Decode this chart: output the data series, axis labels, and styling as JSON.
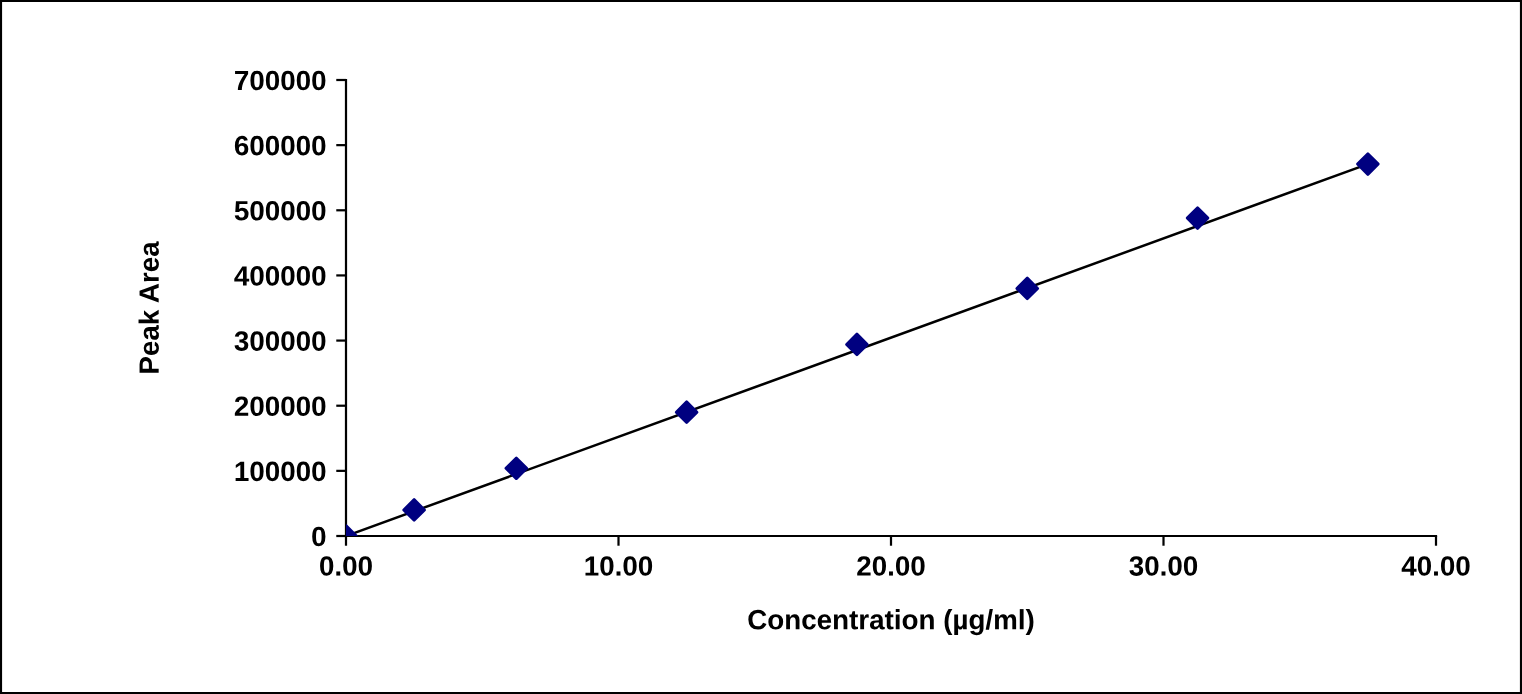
{
  "chart_data": {
    "type": "scatter",
    "xlabel": "Concentration (µg/ml)",
    "ylabel": "Peak Area",
    "series": [
      {
        "color": "#000080",
        "marker": "diamond",
        "x": [
          0,
          2.5,
          6.25,
          12.5,
          18.75,
          25,
          31.25,
          37.5
        ],
        "values": [
          0,
          40000,
          104000,
          190000,
          294000,
          380000,
          488000,
          571000
        ]
      },
      {
        "type": "line",
        "color": "#000000",
        "marker": "none",
        "x": [
          0,
          37.5
        ],
        "values": [
          0,
          571000
        ]
      }
    ],
    "xlim": [
      0,
      40
    ],
    "xticks": [
      {
        "value": 0,
        "label": "0.00"
      },
      {
        "value": 10,
        "label": "10.00"
      },
      {
        "value": 20,
        "label": "20.00"
      },
      {
        "value": 30,
        "label": "30.00"
      },
      {
        "value": 40,
        "label": "40.00"
      }
    ],
    "ylim": [
      0,
      700000
    ],
    "yticks": [
      0,
      100000,
      200000,
      300000,
      400000,
      500000,
      600000,
      700000
    ],
    "grid": false,
    "legend": false
  }
}
